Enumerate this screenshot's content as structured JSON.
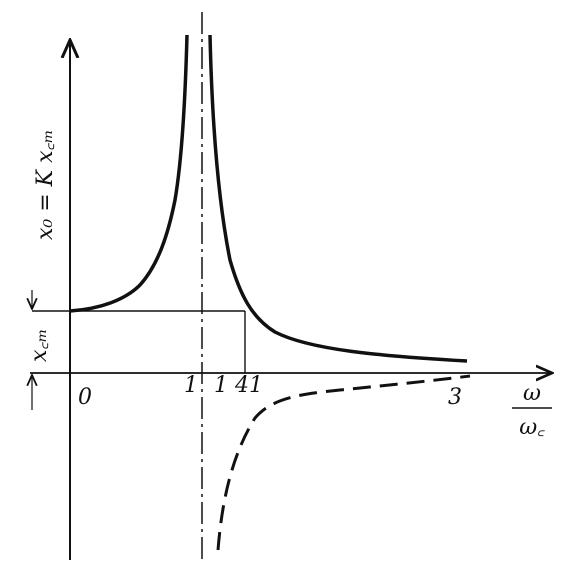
{
  "y_axis_label": "x₀ = K x꜀ₘ",
  "level_label": "x꜀ₘ",
  "x_ticks": [
    "0",
    "1",
    "1 41",
    "3"
  ],
  "x_axis_label": {
    "numerator": "ω",
    "denominator": "ω꜀"
  }
}
